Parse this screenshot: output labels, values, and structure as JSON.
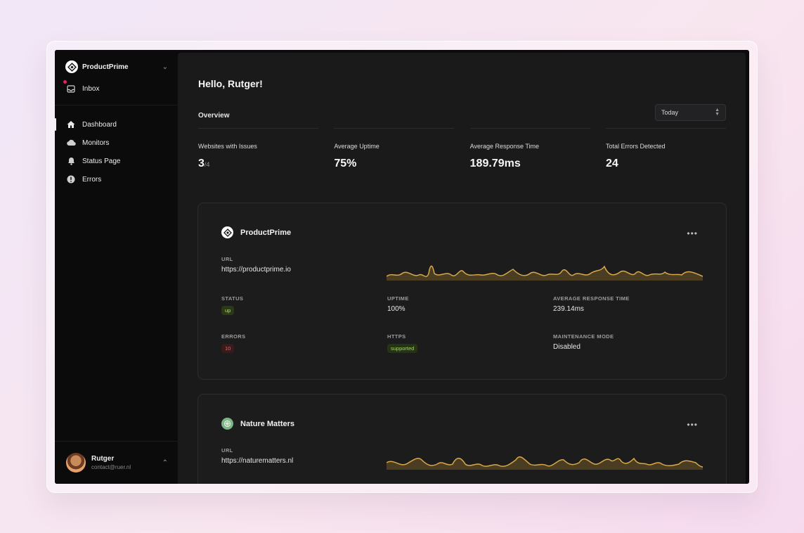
{
  "sidebar": {
    "brand": "ProductPrime",
    "inbox": "Inbox",
    "nav": [
      {
        "label": "Dashboard",
        "icon": "home-icon"
      },
      {
        "label": "Monitors",
        "icon": "cloud-icon"
      },
      {
        "label": "Status Page",
        "icon": "bell-icon"
      },
      {
        "label": "Errors",
        "icon": "alert-circle-icon"
      }
    ],
    "user": {
      "name": "Rutger",
      "email": "contact@ruer.nl"
    }
  },
  "main": {
    "greeting": "Hello, Rutger!",
    "overview_label": "Overview",
    "range_select": "Today",
    "stats": [
      {
        "label": "Websites with Issues",
        "value": "3",
        "sub": "/4"
      },
      {
        "label": "Average Uptime",
        "value": "75%"
      },
      {
        "label": "Average Response Time",
        "value": "189.79ms"
      },
      {
        "label": "Total Errors Detected",
        "value": "24"
      }
    ],
    "sites": [
      {
        "name": "ProductPrime",
        "url_label": "URL",
        "url": "https://productprime.io",
        "status_label": "STATUS",
        "status": "up",
        "uptime_label": "UPTIME",
        "uptime": "100%",
        "art_label": "AVERAGE RESPONSE TIME",
        "art": "239.14ms",
        "errors_label": "ERRORS",
        "errors": "10",
        "https_label": "HTTPS",
        "https": "supported",
        "maint_label": "MAINTENANCE MODE",
        "maint": "Disabled"
      },
      {
        "name": "Nature Matters",
        "url_label": "URL",
        "url": "https://naturematters.nl"
      }
    ]
  },
  "colors": {
    "accent_spark": "#d9a84a",
    "spark_fill": "#4a3d22"
  }
}
